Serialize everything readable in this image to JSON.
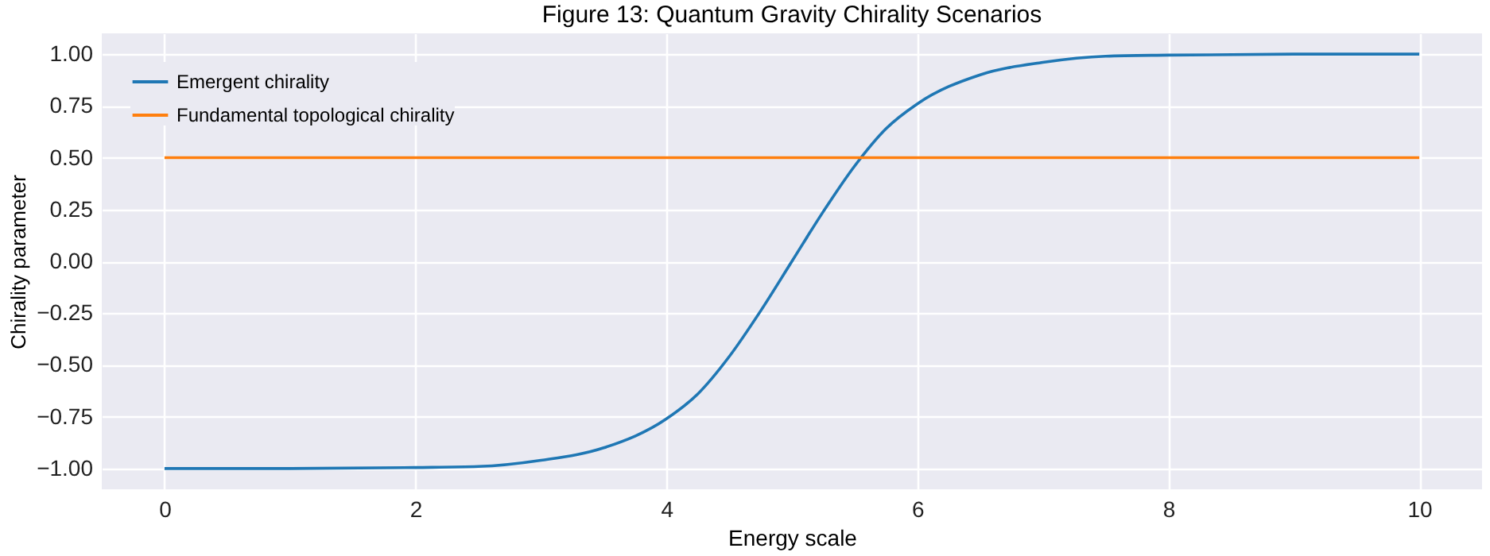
{
  "chart_data": {
    "type": "line",
    "title": "Figure 13: Quantum Gravity Chirality Scenarios",
    "xlabel": "Energy scale",
    "ylabel": "Chirality parameter",
    "series": [
      {
        "name": "Emergent chirality",
        "color": "#1f77b4",
        "x": [
          0,
          1,
          2,
          2.5,
          3,
          3.5,
          4,
          4.25,
          4.5,
          4.75,
          5,
          5.25,
          5.5,
          5.75,
          6,
          6.5,
          7,
          7.5,
          8,
          9,
          10
        ],
        "values": [
          -1.0,
          -1.0,
          -0.995,
          -0.99,
          -0.96,
          -0.9,
          -0.76,
          -0.64,
          -0.46,
          -0.24,
          0.0,
          0.24,
          0.46,
          0.64,
          0.76,
          0.9,
          0.96,
          0.99,
          0.995,
          1.0,
          1.0
        ]
      },
      {
        "name": "Fundamental topological chirality",
        "color": "#ff7f0e",
        "x": [
          0,
          10
        ],
        "values": [
          0.5,
          0.5
        ]
      }
    ],
    "xlim": [
      -0.5,
      10.5
    ],
    "xticks": [
      0,
      2,
      4,
      6,
      8,
      10
    ],
    "ylim": [
      -1.1,
      1.1
    ],
    "yticks": [
      {
        "value": -1,
        "label": "−1.00"
      },
      {
        "value": -0.75,
        "label": "−0.75"
      },
      {
        "value": -0.5,
        "label": "−0.50"
      },
      {
        "value": -0.25,
        "label": "−0.25"
      },
      {
        "value": 0,
        "label": "0.00"
      },
      {
        "value": 0.25,
        "label": "0.25"
      },
      {
        "value": 0.5,
        "label": "0.50"
      },
      {
        "value": 0.75,
        "label": "0.75"
      },
      {
        "value": 1,
        "label": "1.00"
      }
    ],
    "grid": true,
    "legend": "top left",
    "line_style": "solid"
  }
}
